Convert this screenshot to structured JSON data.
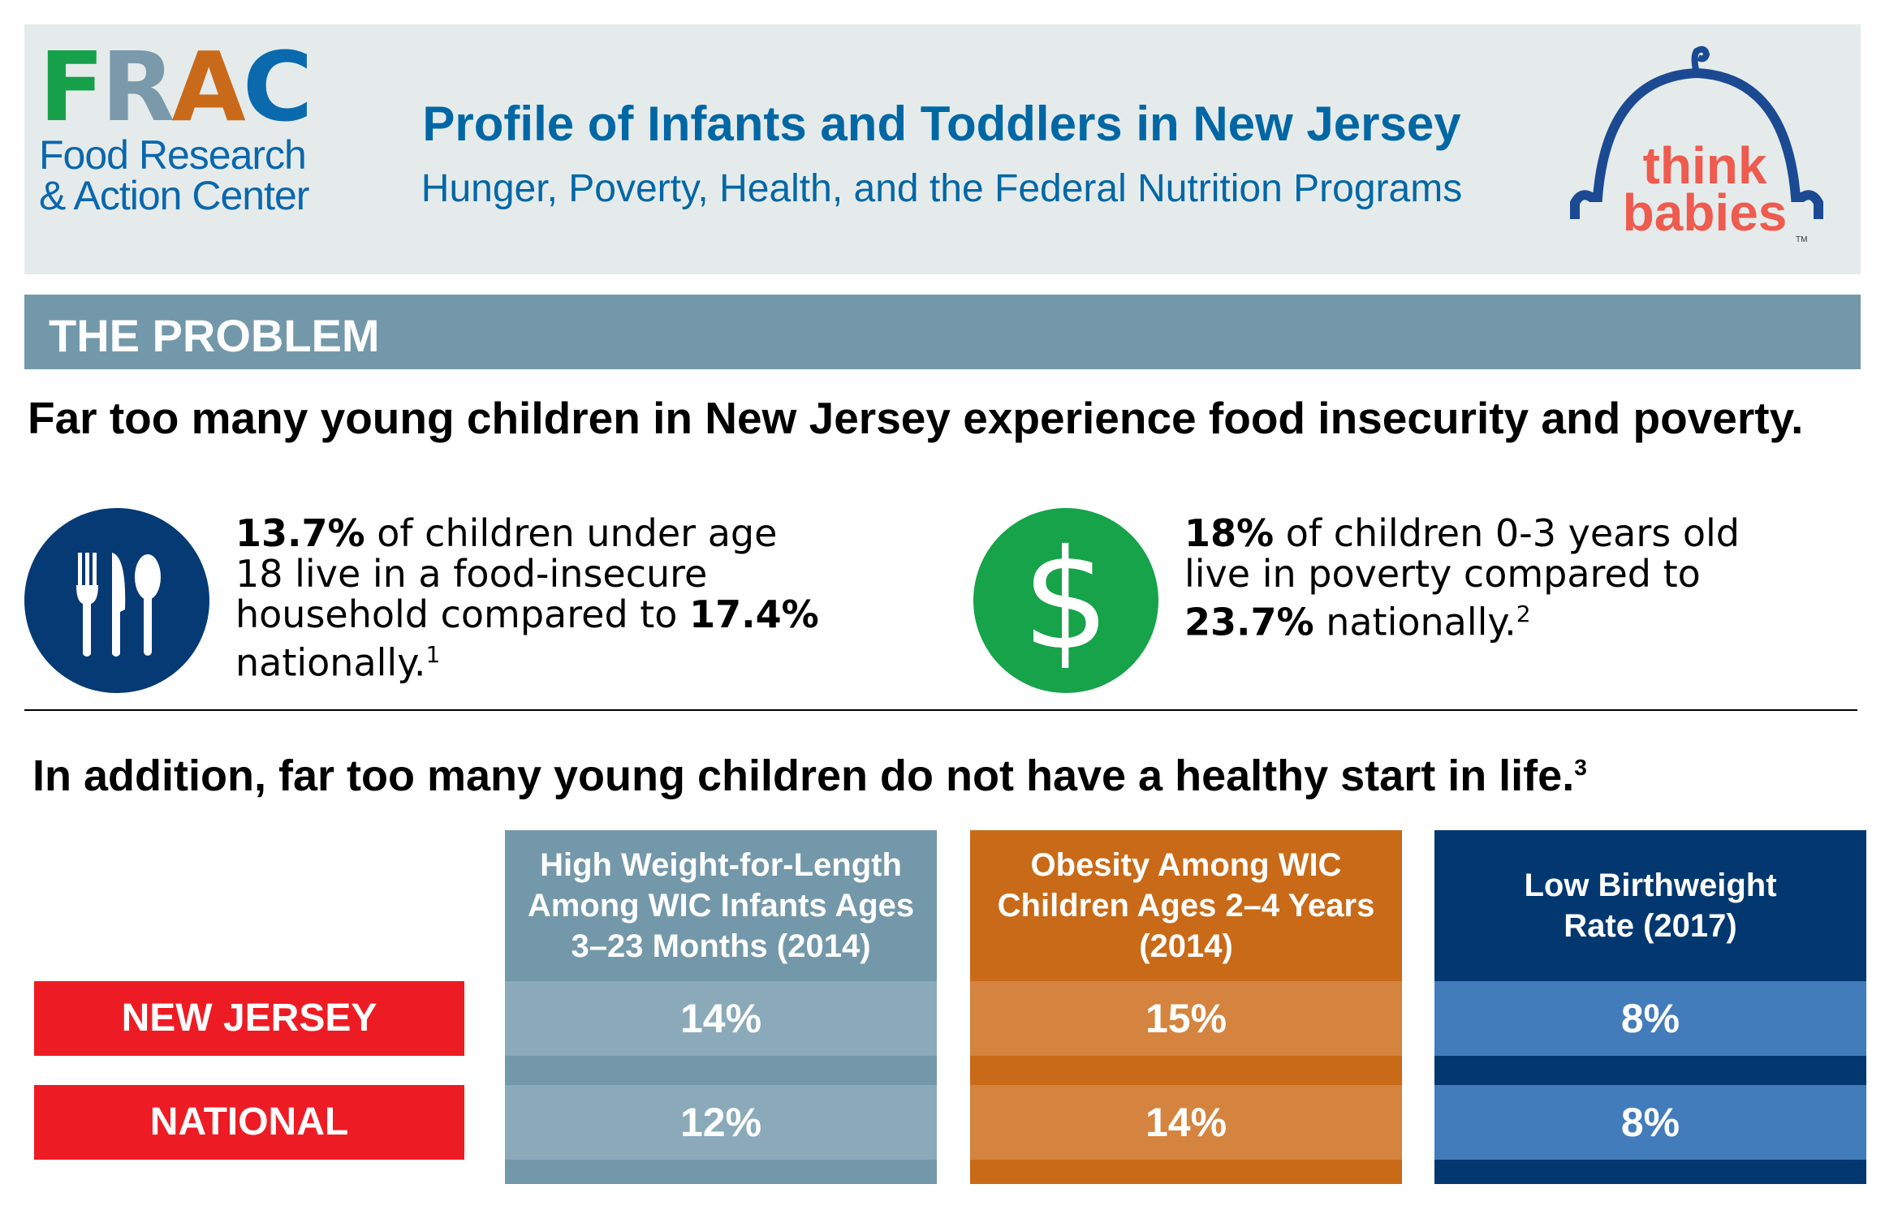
{
  "header": {
    "frac_logo": {
      "letters": [
        "F",
        "R",
        "A",
        "C"
      ],
      "letter_colors": [
        "#17a04a",
        "#7a9aab",
        "#c96a1a",
        "#0a6aad"
      ],
      "line1": "Food Research",
      "line2": "& Action Center"
    },
    "title": "Profile of Infants and Toddlers in New Jersey",
    "subtitle": "Hunger, Poverty, Health, and the Federal Nutrition Programs",
    "think_babies_logo": {
      "line1": "think",
      "line2": "babies",
      "tm": "TM"
    }
  },
  "section": {
    "title": "THE PROBLEM"
  },
  "headline1": "Far too many young children in New Jersey experience food insecurity and poverty.",
  "stats": [
    {
      "icon": "utensils-icon",
      "bold1": "13.7%",
      "text1": " of children under age 18 live in a food-insecure household compared to ",
      "bold2": "17.4%",
      "text2": " nationally.",
      "footnote": "1"
    },
    {
      "icon": "dollar-icon",
      "icon_glyph": "$",
      "bold1": "18%",
      "text1": " of children 0-3 years old live in poverty compared to ",
      "bold2": "23.7%",
      "text2": " nationally.",
      "footnote": "2"
    }
  ],
  "headline2": {
    "text": "In addition, far too many young children do not have a healthy start in life.",
    "footnote": "3"
  },
  "table": {
    "row_labels": [
      "NEW JERSEY",
      "NATIONAL"
    ],
    "columns": [
      {
        "header": "High Weight-for-Length Among WIC Infants Ages 3–23 Months (2014)",
        "values": [
          "14%",
          "12%"
        ],
        "dark": "#7398a9",
        "light": "#8aaaba"
      },
      {
        "header": "Obesity Among WIC Children Ages 2–4 Years (2014)",
        "values": [
          "15%",
          "14%"
        ],
        "dark": "#c96a18",
        "light": "#d4843f"
      },
      {
        "header": "Low Birthweight Rate (2017)",
        "values": [
          "8%",
          "8%"
        ],
        "dark": "#02386f",
        "light": "#427cba"
      }
    ]
  },
  "colors": {
    "header_bg": "#e5ebeb",
    "section_bar": "#7398aa",
    "title_blue": "#0067a5",
    "row_label_red": "#ed1c24"
  }
}
